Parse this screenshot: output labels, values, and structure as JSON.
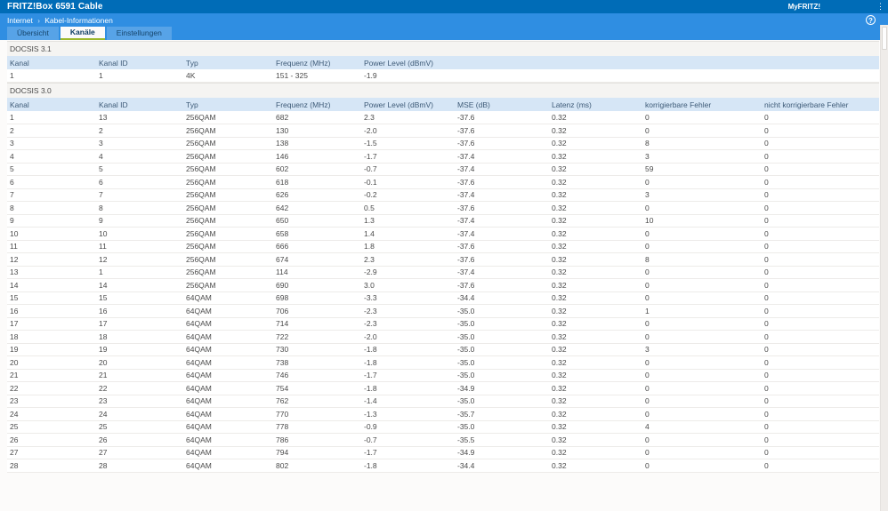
{
  "header": {
    "title": "FRITZ!Box 6591 Cable",
    "myfritz_label": "MyFRITZ!",
    "menu_icon_glyph": "⋮",
    "help_icon_glyph": "?"
  },
  "breadcrumb": {
    "items": [
      "Internet",
      "Kabel-Informationen"
    ],
    "separator": "›"
  },
  "tabs": [
    {
      "label": "Übersicht",
      "active": false
    },
    {
      "label": "Kanäle",
      "active": true
    },
    {
      "label": "Einstellungen",
      "active": false
    }
  ],
  "docsis31": {
    "section_title": "DOCSIS 3.1",
    "columns": [
      "Kanal",
      "Kanal ID",
      "Typ",
      "Frequenz (MHz)",
      "Power Level (dBmV)"
    ],
    "rows": [
      [
        "1",
        "1",
        "4K",
        "151 - 325",
        "-1.9"
      ]
    ]
  },
  "docsis30": {
    "section_title": "DOCSIS 3.0",
    "columns": [
      "Kanal",
      "Kanal ID",
      "Typ",
      "Frequenz (MHz)",
      "Power Level (dBmV)",
      "MSE (dB)",
      "Latenz (ms)",
      "korrigierbare Fehler",
      "nicht korrigierbare Fehler"
    ],
    "rows": [
      [
        "1",
        "13",
        "256QAM",
        "682",
        "2.3",
        "-37.6",
        "0.32",
        "0",
        "0"
      ],
      [
        "2",
        "2",
        "256QAM",
        "130",
        "-2.0",
        "-37.6",
        "0.32",
        "0",
        "0"
      ],
      [
        "3",
        "3",
        "256QAM",
        "138",
        "-1.5",
        "-37.6",
        "0.32",
        "8",
        "0"
      ],
      [
        "4",
        "4",
        "256QAM",
        "146",
        "-1.7",
        "-37.4",
        "0.32",
        "3",
        "0"
      ],
      [
        "5",
        "5",
        "256QAM",
        "602",
        "-0.7",
        "-37.4",
        "0.32",
        "59",
        "0"
      ],
      [
        "6",
        "6",
        "256QAM",
        "618",
        "-0.1",
        "-37.6",
        "0.32",
        "0",
        "0"
      ],
      [
        "7",
        "7",
        "256QAM",
        "626",
        "-0.2",
        "-37.4",
        "0.32",
        "3",
        "0"
      ],
      [
        "8",
        "8",
        "256QAM",
        "642",
        "0.5",
        "-37.6",
        "0.32",
        "0",
        "0"
      ],
      [
        "9",
        "9",
        "256QAM",
        "650",
        "1.3",
        "-37.4",
        "0.32",
        "10",
        "0"
      ],
      [
        "10",
        "10",
        "256QAM",
        "658",
        "1.4",
        "-37.4",
        "0.32",
        "0",
        "0"
      ],
      [
        "11",
        "11",
        "256QAM",
        "666",
        "1.8",
        "-37.6",
        "0.32",
        "0",
        "0"
      ],
      [
        "12",
        "12",
        "256QAM",
        "674",
        "2.3",
        "-37.6",
        "0.32",
        "8",
        "0"
      ],
      [
        "13",
        "1",
        "256QAM",
        "114",
        "-2.9",
        "-37.4",
        "0.32",
        "0",
        "0"
      ],
      [
        "14",
        "14",
        "256QAM",
        "690",
        "3.0",
        "-37.6",
        "0.32",
        "0",
        "0"
      ],
      [
        "15",
        "15",
        "64QAM",
        "698",
        "-3.3",
        "-34.4",
        "0.32",
        "0",
        "0"
      ],
      [
        "16",
        "16",
        "64QAM",
        "706",
        "-2.3",
        "-35.0",
        "0.32",
        "1",
        "0"
      ],
      [
        "17",
        "17",
        "64QAM",
        "714",
        "-2.3",
        "-35.0",
        "0.32",
        "0",
        "0"
      ],
      [
        "18",
        "18",
        "64QAM",
        "722",
        "-2.0",
        "-35.0",
        "0.32",
        "0",
        "0"
      ],
      [
        "19",
        "19",
        "64QAM",
        "730",
        "-1.8",
        "-35.0",
        "0.32",
        "3",
        "0"
      ],
      [
        "20",
        "20",
        "64QAM",
        "738",
        "-1.8",
        "-35.0",
        "0.32",
        "0",
        "0"
      ],
      [
        "21",
        "21",
        "64QAM",
        "746",
        "-1.7",
        "-35.0",
        "0.32",
        "0",
        "0"
      ],
      [
        "22",
        "22",
        "64QAM",
        "754",
        "-1.8",
        "-34.9",
        "0.32",
        "0",
        "0"
      ],
      [
        "23",
        "23",
        "64QAM",
        "762",
        "-1.4",
        "-35.0",
        "0.32",
        "0",
        "0"
      ],
      [
        "24",
        "24",
        "64QAM",
        "770",
        "-1.3",
        "-35.7",
        "0.32",
        "0",
        "0"
      ],
      [
        "25",
        "25",
        "64QAM",
        "778",
        "-0.9",
        "-35.0",
        "0.32",
        "4",
        "0"
      ],
      [
        "26",
        "26",
        "64QAM",
        "786",
        "-0.7",
        "-35.5",
        "0.32",
        "0",
        "0"
      ],
      [
        "27",
        "27",
        "64QAM",
        "794",
        "-1.7",
        "-34.9",
        "0.32",
        "0",
        "0"
      ],
      [
        "28",
        "28",
        "64QAM",
        "802",
        "-1.8",
        "-34.4",
        "0.32",
        "0",
        "0"
      ]
    ]
  },
  "colors": {
    "topbar": "#006cb7",
    "subbar": "#2f8ee2",
    "tab_active_underline": "#9cb82c",
    "table_header_bg": "#d6e6f6",
    "section_bg": "#f5f4f2"
  }
}
